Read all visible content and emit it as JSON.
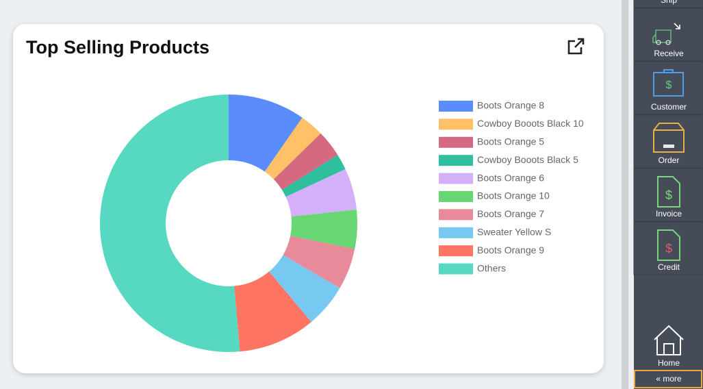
{
  "chart_data": {
    "type": "donut",
    "title": "Top Selling Products",
    "series": [
      {
        "name": "Boots Orange 8",
        "color": "#5a8dfb",
        "values": [
          9.7
        ]
      },
      {
        "name": "Cowboy Booots Black 10",
        "color": "#ffc067",
        "values": [
          3
        ]
      },
      {
        "name": "Boots Orange 5",
        "color": "#d4697f",
        "values": [
          3.4
        ]
      },
      {
        "name": "Cowboy Booots Black 5",
        "color": "#2fbf9f",
        "values": [
          2
        ]
      },
      {
        "name": "Boots Orange 6",
        "color": "#d4b0fb",
        "values": [
          5.2
        ]
      },
      {
        "name": "Boots Orange 10",
        "color": "#67d673",
        "values": [
          4.9
        ]
      },
      {
        "name": "Boots Orange 7",
        "color": "#e88a9a",
        "values": [
          5.2
        ]
      },
      {
        "name": "Sweater Yellow S",
        "color": "#77c9f2",
        "values": [
          5.5
        ]
      },
      {
        "name": "Boots Orange 9",
        "color": "#ff7563",
        "values": [
          9.7
        ]
      },
      {
        "name": "Others",
        "color": "#56d9c0",
        "values": [
          51.4
        ]
      }
    ],
    "legend": "right"
  },
  "sidebar": {
    "items": [
      "Ship",
      "Receive",
      "Customer",
      "Order",
      "Invoice",
      "Credit"
    ],
    "home": "Home",
    "more": "« more"
  }
}
